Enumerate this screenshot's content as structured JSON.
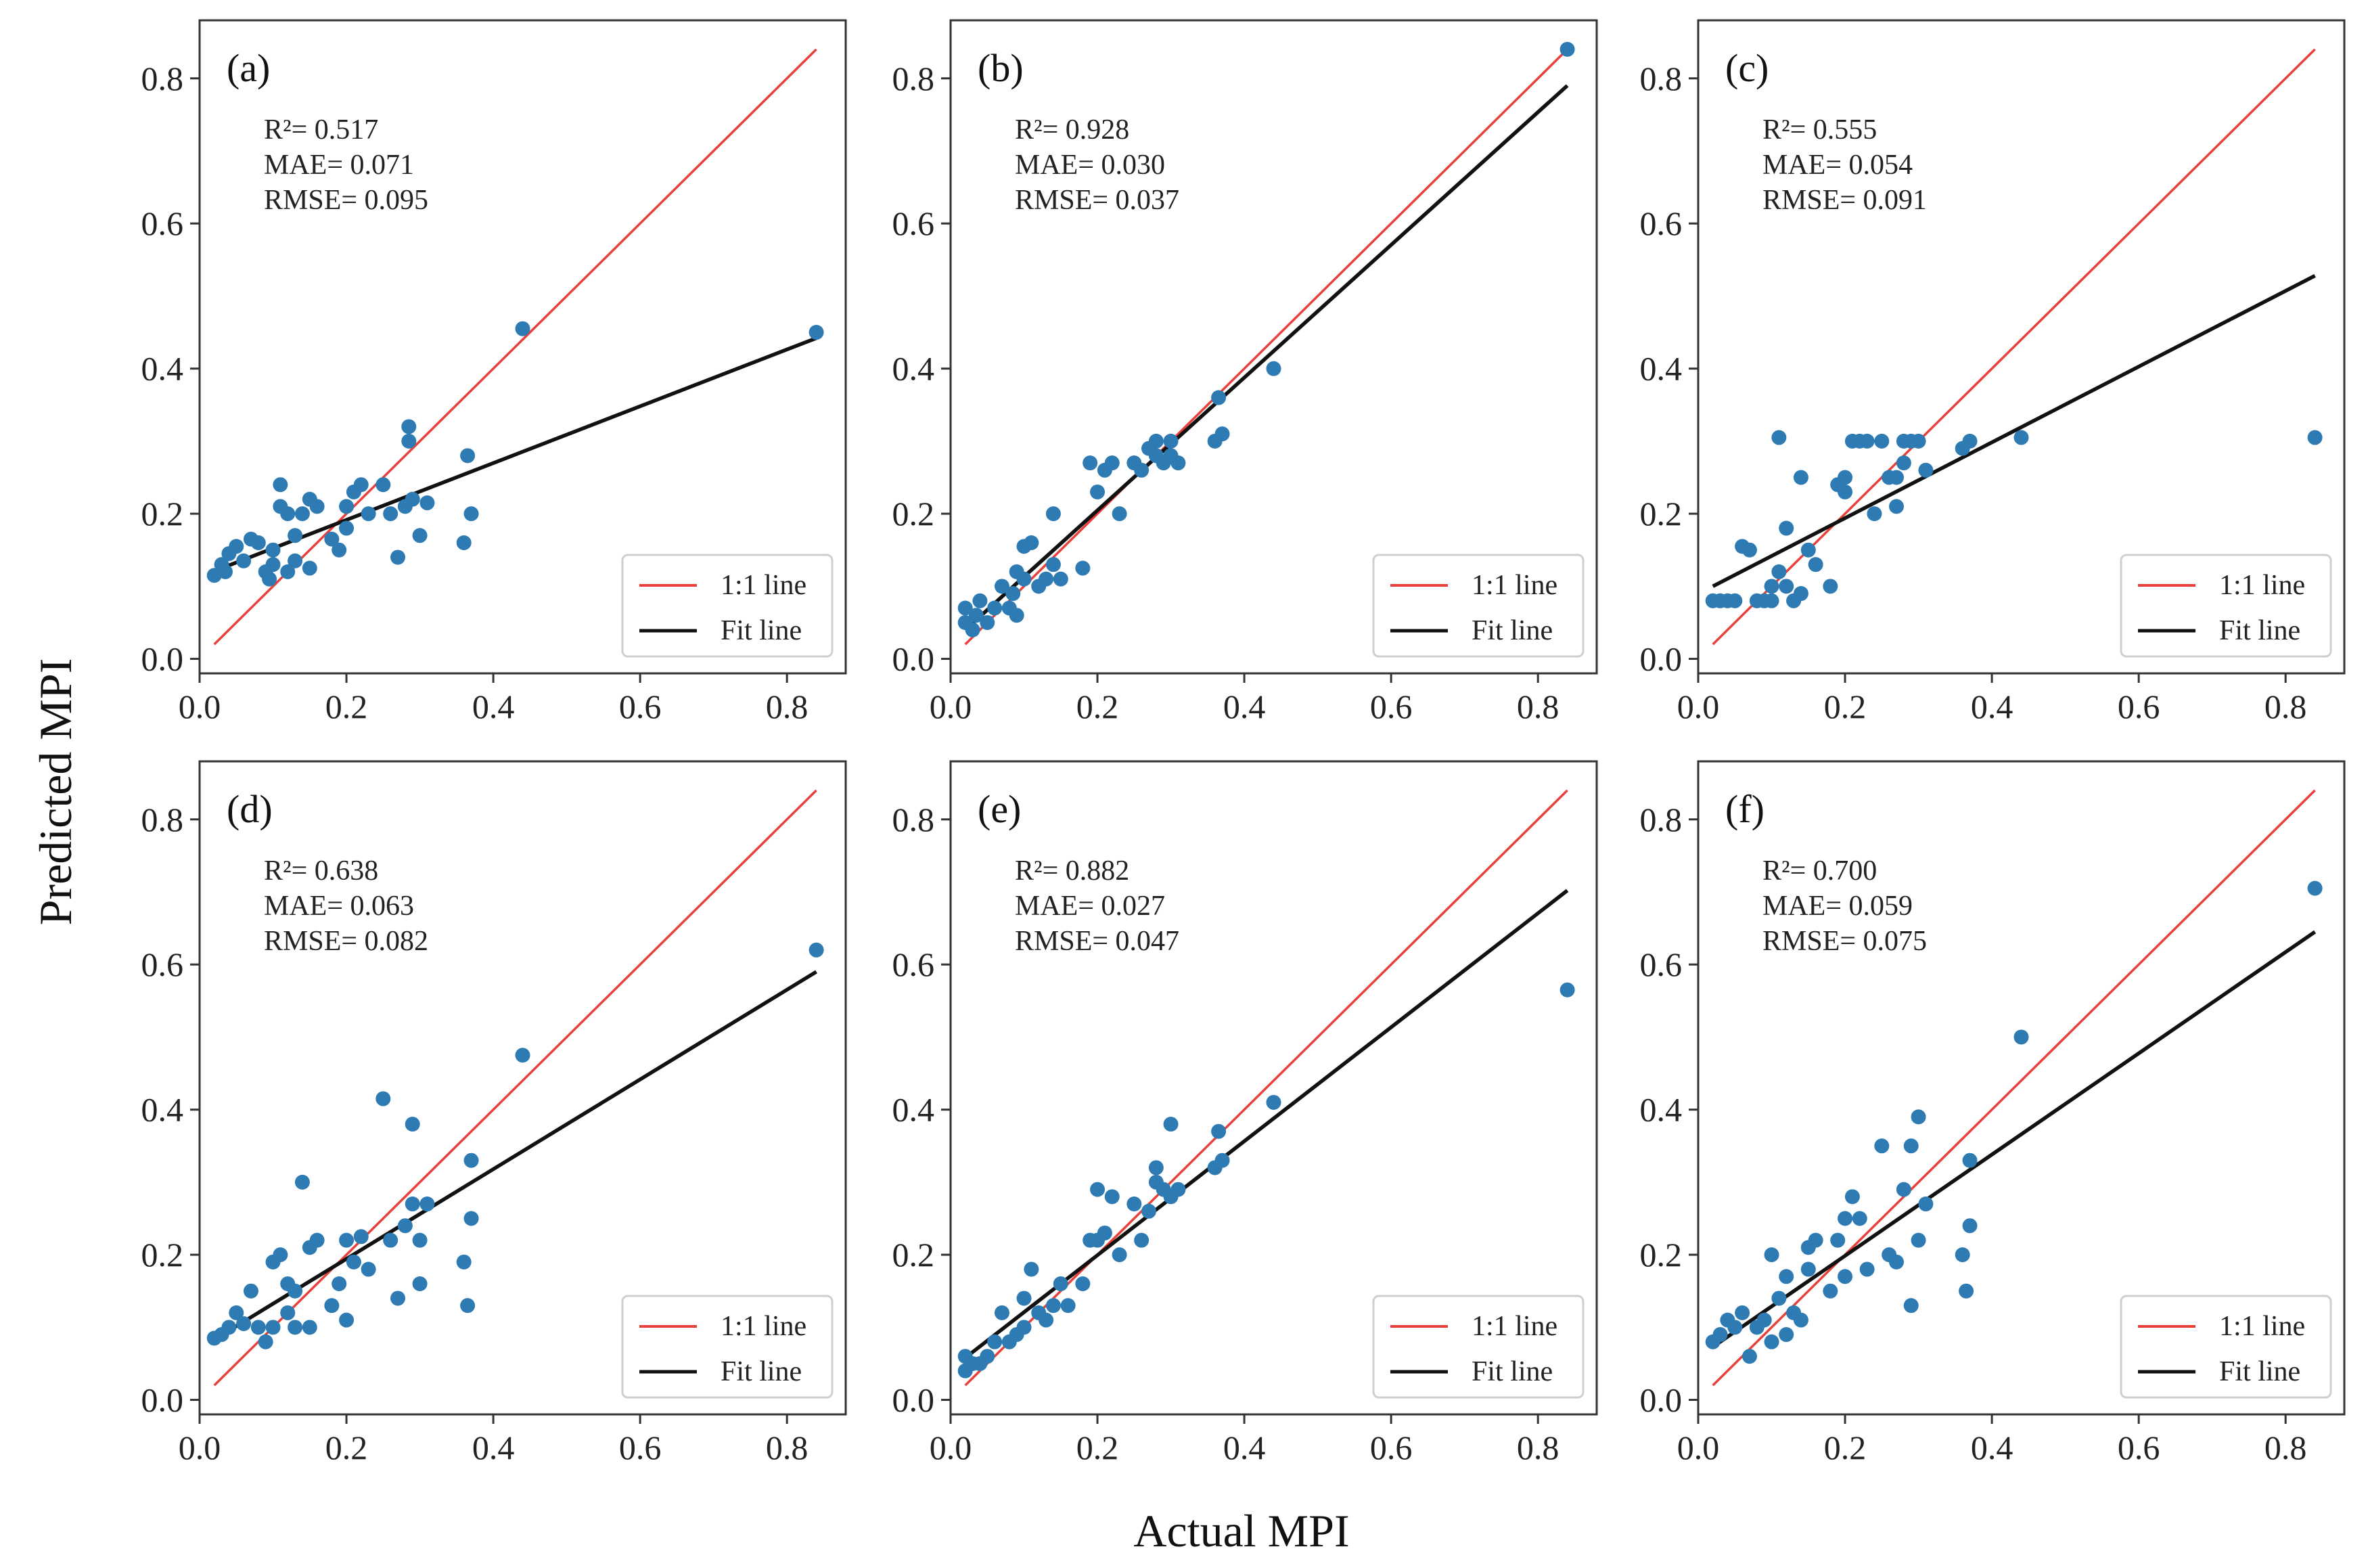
{
  "figure": {
    "xlabel": "Actual MPI",
    "ylabel": "Predicted MPI"
  },
  "legend": {
    "one_to_one": "1:1 line",
    "fit": "Fit line"
  },
  "colors": {
    "points": "#2e7bb4",
    "one_to_one_line": "#e8413c",
    "fit_line": "#111111",
    "frame": "#333333"
  },
  "chart_data": [
    {
      "type": "scatter",
      "label": "(a)",
      "stats": {
        "r2": "R²= 0.517",
        "mae": "MAE= 0.071",
        "rmse": "RMSE= 0.095"
      },
      "xlim": [
        0.0,
        0.88
      ],
      "ylim": [
        -0.02,
        0.88
      ],
      "xticks": [
        "0.0",
        "0.2",
        "0.4",
        "0.6",
        "0.8"
      ],
      "yticks": [
        "0.0",
        "0.2",
        "0.4",
        "0.6",
        "0.8"
      ],
      "fit": [
        [
          0.02,
          0.121
        ],
        [
          0.84,
          0.442
        ]
      ],
      "points": [
        [
          0.02,
          0.115
        ],
        [
          0.03,
          0.13
        ],
        [
          0.035,
          0.12
        ],
        [
          0.04,
          0.145
        ],
        [
          0.05,
          0.155
        ],
        [
          0.06,
          0.135
        ],
        [
          0.07,
          0.165
        ],
        [
          0.08,
          0.16
        ],
        [
          0.09,
          0.12
        ],
        [
          0.095,
          0.11
        ],
        [
          0.1,
          0.15
        ],
        [
          0.1,
          0.13
        ],
        [
          0.11,
          0.21
        ],
        [
          0.11,
          0.24
        ],
        [
          0.12,
          0.2
        ],
        [
          0.12,
          0.12
        ],
        [
          0.13,
          0.135
        ],
        [
          0.13,
          0.17
        ],
        [
          0.14,
          0.2
        ],
        [
          0.15,
          0.125
        ],
        [
          0.15,
          0.22
        ],
        [
          0.16,
          0.21
        ],
        [
          0.18,
          0.165
        ],
        [
          0.19,
          0.15
        ],
        [
          0.2,
          0.18
        ],
        [
          0.2,
          0.21
        ],
        [
          0.21,
          0.23
        ],
        [
          0.22,
          0.24
        ],
        [
          0.23,
          0.2
        ],
        [
          0.25,
          0.24
        ],
        [
          0.26,
          0.2
        ],
        [
          0.27,
          0.14
        ],
        [
          0.28,
          0.21
        ],
        [
          0.285,
          0.3
        ],
        [
          0.285,
          0.32
        ],
        [
          0.29,
          0.22
        ],
        [
          0.3,
          0.17
        ],
        [
          0.31,
          0.215
        ],
        [
          0.36,
          0.16
        ],
        [
          0.365,
          0.28
        ],
        [
          0.37,
          0.2
        ],
        [
          0.44,
          0.455
        ],
        [
          0.84,
          0.45
        ]
      ]
    },
    {
      "type": "scatter",
      "label": "(b)",
      "stats": {
        "r2": "R²= 0.928",
        "mae": "MAE= 0.030",
        "rmse": "RMSE= 0.037"
      },
      "xlim": [
        0.0,
        0.88
      ],
      "ylim": [
        -0.02,
        0.88
      ],
      "xticks": [
        "0.0",
        "0.2",
        "0.4",
        "0.6",
        "0.8"
      ],
      "yticks": [
        "0.0",
        "0.2",
        "0.4",
        "0.6",
        "0.8"
      ],
      "fit": [
        [
          0.02,
          0.04
        ],
        [
          0.84,
          0.79
        ]
      ],
      "points": [
        [
          0.02,
          0.05
        ],
        [
          0.02,
          0.07
        ],
        [
          0.03,
          0.04
        ],
        [
          0.035,
          0.06
        ],
        [
          0.04,
          0.08
        ],
        [
          0.05,
          0.05
        ],
        [
          0.06,
          0.07
        ],
        [
          0.07,
          0.1
        ],
        [
          0.08,
          0.07
        ],
        [
          0.085,
          0.09
        ],
        [
          0.09,
          0.06
        ],
        [
          0.09,
          0.12
        ],
        [
          0.1,
          0.11
        ],
        [
          0.1,
          0.155
        ],
        [
          0.11,
          0.16
        ],
        [
          0.12,
          0.1
        ],
        [
          0.13,
          0.11
        ],
        [
          0.14,
          0.13
        ],
        [
          0.14,
          0.2
        ],
        [
          0.15,
          0.11
        ],
        [
          0.18,
          0.125
        ],
        [
          0.19,
          0.27
        ],
        [
          0.2,
          0.23
        ],
        [
          0.21,
          0.26
        ],
        [
          0.22,
          0.27
        ],
        [
          0.23,
          0.2
        ],
        [
          0.25,
          0.27
        ],
        [
          0.26,
          0.26
        ],
        [
          0.27,
          0.29
        ],
        [
          0.28,
          0.28
        ],
        [
          0.28,
          0.3
        ],
        [
          0.29,
          0.27
        ],
        [
          0.3,
          0.28
        ],
        [
          0.3,
          0.3
        ],
        [
          0.31,
          0.27
        ],
        [
          0.36,
          0.3
        ],
        [
          0.365,
          0.36
        ],
        [
          0.37,
          0.31
        ],
        [
          0.44,
          0.4
        ],
        [
          0.84,
          0.84
        ]
      ]
    },
    {
      "type": "scatter",
      "label": "(c)",
      "stats": {
        "r2": "R²= 0.555",
        "mae": "MAE= 0.054",
        "rmse": "RMSE= 0.091"
      },
      "xlim": [
        0.0,
        0.88
      ],
      "ylim": [
        -0.02,
        0.88
      ],
      "xticks": [
        "0.0",
        "0.2",
        "0.4",
        "0.6",
        "0.8"
      ],
      "yticks": [
        "0.0",
        "0.2",
        "0.4",
        "0.6",
        "0.8"
      ],
      "fit": [
        [
          0.02,
          0.1
        ],
        [
          0.84,
          0.528
        ]
      ],
      "points": [
        [
          0.02,
          0.08
        ],
        [
          0.03,
          0.08
        ],
        [
          0.04,
          0.08
        ],
        [
          0.05,
          0.08
        ],
        [
          0.06,
          0.155
        ],
        [
          0.07,
          0.15
        ],
        [
          0.08,
          0.08
        ],
        [
          0.09,
          0.08
        ],
        [
          0.1,
          0.08
        ],
        [
          0.1,
          0.1
        ],
        [
          0.11,
          0.12
        ],
        [
          0.11,
          0.305
        ],
        [
          0.12,
          0.1
        ],
        [
          0.12,
          0.18
        ],
        [
          0.13,
          0.08
        ],
        [
          0.14,
          0.25
        ],
        [
          0.14,
          0.09
        ],
        [
          0.15,
          0.15
        ],
        [
          0.16,
          0.13
        ],
        [
          0.18,
          0.1
        ],
        [
          0.19,
          0.24
        ],
        [
          0.2,
          0.25
        ],
        [
          0.2,
          0.23
        ],
        [
          0.21,
          0.3
        ],
        [
          0.22,
          0.3
        ],
        [
          0.23,
          0.3
        ],
        [
          0.24,
          0.2
        ],
        [
          0.25,
          0.3
        ],
        [
          0.26,
          0.25
        ],
        [
          0.27,
          0.25
        ],
        [
          0.27,
          0.21
        ],
        [
          0.28,
          0.3
        ],
        [
          0.28,
          0.27
        ],
        [
          0.29,
          0.3
        ],
        [
          0.3,
          0.3
        ],
        [
          0.31,
          0.26
        ],
        [
          0.36,
          0.29
        ],
        [
          0.37,
          0.3
        ],
        [
          0.44,
          0.305
        ],
        [
          0.84,
          0.305
        ]
      ]
    },
    {
      "type": "scatter",
      "label": "(d)",
      "stats": {
        "r2": "R²= 0.638",
        "mae": "MAE= 0.063",
        "rmse": "RMSE= 0.082"
      },
      "xlim": [
        0.0,
        0.88
      ],
      "ylim": [
        -0.02,
        0.88
      ],
      "xticks": [
        "0.0",
        "0.2",
        "0.4",
        "0.6",
        "0.8"
      ],
      "yticks": [
        "0.0",
        "0.2",
        "0.4",
        "0.6",
        "0.8"
      ],
      "fit": [
        [
          0.02,
          0.083
        ],
        [
          0.84,
          0.59
        ]
      ],
      "points": [
        [
          0.02,
          0.085
        ],
        [
          0.03,
          0.09
        ],
        [
          0.04,
          0.1
        ],
        [
          0.05,
          0.12
        ],
        [
          0.06,
          0.105
        ],
        [
          0.07,
          0.15
        ],
        [
          0.08,
          0.1
        ],
        [
          0.09,
          0.08
        ],
        [
          0.1,
          0.19
        ],
        [
          0.1,
          0.1
        ],
        [
          0.11,
          0.2
        ],
        [
          0.12,
          0.16
        ],
        [
          0.12,
          0.12
        ],
        [
          0.13,
          0.1
        ],
        [
          0.13,
          0.15
        ],
        [
          0.14,
          0.3
        ],
        [
          0.15,
          0.21
        ],
        [
          0.15,
          0.1
        ],
        [
          0.16,
          0.22
        ],
        [
          0.18,
          0.13
        ],
        [
          0.19,
          0.16
        ],
        [
          0.2,
          0.11
        ],
        [
          0.2,
          0.22
        ],
        [
          0.21,
          0.19
        ],
        [
          0.22,
          0.225
        ],
        [
          0.23,
          0.18
        ],
        [
          0.25,
          0.415
        ],
        [
          0.26,
          0.22
        ],
        [
          0.27,
          0.14
        ],
        [
          0.28,
          0.24
        ],
        [
          0.29,
          0.27
        ],
        [
          0.29,
          0.38
        ],
        [
          0.3,
          0.22
        ],
        [
          0.3,
          0.16
        ],
        [
          0.31,
          0.27
        ],
        [
          0.36,
          0.19
        ],
        [
          0.365,
          0.13
        ],
        [
          0.37,
          0.33
        ],
        [
          0.37,
          0.25
        ],
        [
          0.44,
          0.475
        ],
        [
          0.84,
          0.62
        ]
      ]
    },
    {
      "type": "scatter",
      "label": "(e)",
      "stats": {
        "r2": "R²= 0.882",
        "mae": "MAE= 0.027",
        "rmse": "RMSE= 0.047"
      },
      "xlim": [
        0.0,
        0.88
      ],
      "ylim": [
        -0.02,
        0.88
      ],
      "xticks": [
        "0.0",
        "0.2",
        "0.4",
        "0.6",
        "0.8"
      ],
      "yticks": [
        "0.0",
        "0.2",
        "0.4",
        "0.6",
        "0.8"
      ],
      "fit": [
        [
          0.02,
          0.058
        ],
        [
          0.84,
          0.702
        ]
      ],
      "points": [
        [
          0.02,
          0.04
        ],
        [
          0.02,
          0.06
        ],
        [
          0.03,
          0.05
        ],
        [
          0.04,
          0.05
        ],
        [
          0.05,
          0.06
        ],
        [
          0.06,
          0.08
        ],
        [
          0.07,
          0.12
        ],
        [
          0.08,
          0.08
        ],
        [
          0.09,
          0.09
        ],
        [
          0.1,
          0.1
        ],
        [
          0.1,
          0.14
        ],
        [
          0.11,
          0.18
        ],
        [
          0.12,
          0.12
        ],
        [
          0.13,
          0.11
        ],
        [
          0.14,
          0.13
        ],
        [
          0.15,
          0.16
        ],
        [
          0.16,
          0.13
        ],
        [
          0.18,
          0.16
        ],
        [
          0.19,
          0.22
        ],
        [
          0.2,
          0.29
        ],
        [
          0.2,
          0.22
        ],
        [
          0.21,
          0.23
        ],
        [
          0.22,
          0.28
        ],
        [
          0.23,
          0.2
        ],
        [
          0.25,
          0.27
        ],
        [
          0.26,
          0.22
        ],
        [
          0.27,
          0.26
        ],
        [
          0.28,
          0.3
        ],
        [
          0.28,
          0.32
        ],
        [
          0.29,
          0.29
        ],
        [
          0.3,
          0.28
        ],
        [
          0.3,
          0.38
        ],
        [
          0.31,
          0.29
        ],
        [
          0.36,
          0.32
        ],
        [
          0.365,
          0.37
        ],
        [
          0.37,
          0.33
        ],
        [
          0.44,
          0.41
        ],
        [
          0.84,
          0.565
        ]
      ]
    },
    {
      "type": "scatter",
      "label": "(f)",
      "stats": {
        "r2": "R²= 0.700",
        "mae": "MAE= 0.059",
        "rmse": "RMSE= 0.075"
      },
      "xlim": [
        0.0,
        0.88
      ],
      "ylim": [
        -0.02,
        0.88
      ],
      "xticks": [
        "0.0",
        "0.2",
        "0.4",
        "0.6",
        "0.8"
      ],
      "yticks": [
        "0.0",
        "0.2",
        "0.4",
        "0.6",
        "0.8"
      ],
      "fit": [
        [
          0.02,
          0.073
        ],
        [
          0.84,
          0.645
        ]
      ],
      "points": [
        [
          0.02,
          0.08
        ],
        [
          0.03,
          0.09
        ],
        [
          0.04,
          0.11
        ],
        [
          0.05,
          0.1
        ],
        [
          0.06,
          0.12
        ],
        [
          0.07,
          0.06
        ],
        [
          0.08,
          0.1
        ],
        [
          0.09,
          0.11
        ],
        [
          0.1,
          0.2
        ],
        [
          0.1,
          0.08
        ],
        [
          0.11,
          0.14
        ],
        [
          0.12,
          0.17
        ],
        [
          0.12,
          0.09
        ],
        [
          0.13,
          0.12
        ],
        [
          0.14,
          0.11
        ],
        [
          0.15,
          0.21
        ],
        [
          0.15,
          0.18
        ],
        [
          0.16,
          0.22
        ],
        [
          0.18,
          0.15
        ],
        [
          0.19,
          0.22
        ],
        [
          0.2,
          0.25
        ],
        [
          0.2,
          0.17
        ],
        [
          0.21,
          0.28
        ],
        [
          0.22,
          0.25
        ],
        [
          0.23,
          0.18
        ],
        [
          0.25,
          0.35
        ],
        [
          0.26,
          0.2
        ],
        [
          0.27,
          0.19
        ],
        [
          0.28,
          0.29
        ],
        [
          0.29,
          0.35
        ],
        [
          0.29,
          0.13
        ],
        [
          0.3,
          0.39
        ],
        [
          0.3,
          0.22
        ],
        [
          0.31,
          0.27
        ],
        [
          0.36,
          0.2
        ],
        [
          0.365,
          0.15
        ],
        [
          0.37,
          0.33
        ],
        [
          0.37,
          0.24
        ],
        [
          0.44,
          0.5
        ],
        [
          0.84,
          0.705
        ]
      ]
    }
  ]
}
